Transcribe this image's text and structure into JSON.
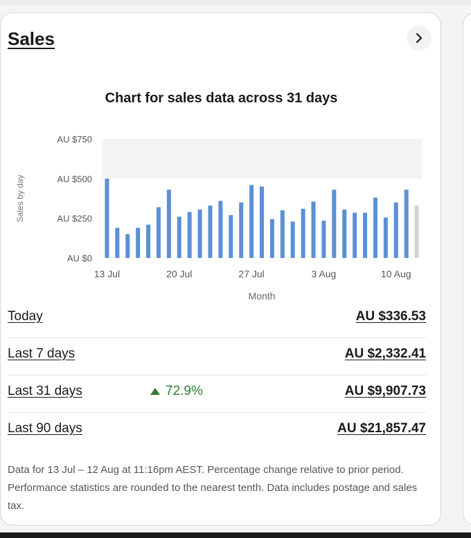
{
  "card": {
    "title": "Sales",
    "chevron_icon": "chevron-right-icon"
  },
  "chart_data": {
    "type": "bar",
    "title": "Chart for sales data across 31 days",
    "xlabel": "Month",
    "ylabel": "Sales by day",
    "yticks": [
      "AU $0",
      "AU $250",
      "AU $500",
      "AU $750"
    ],
    "ylim": [
      0,
      750
    ],
    "xticks": [
      "13 Jul",
      "20 Jul",
      "27 Jul",
      "3 Aug",
      "10 Aug"
    ],
    "categories": [
      "13 Jul",
      "14 Jul",
      "15 Jul",
      "16 Jul",
      "17 Jul",
      "18 Jul",
      "19 Jul",
      "20 Jul",
      "21 Jul",
      "22 Jul",
      "23 Jul",
      "24 Jul",
      "25 Jul",
      "26 Jul",
      "27 Jul",
      "28 Jul",
      "29 Jul",
      "30 Jul",
      "31 Jul",
      "1 Aug",
      "2 Aug",
      "3 Aug",
      "4 Aug",
      "5 Aug",
      "6 Aug",
      "7 Aug",
      "8 Aug",
      "9 Aug",
      "10 Aug",
      "11 Aug",
      "12 Aug"
    ],
    "values": [
      500,
      190,
      150,
      190,
      210,
      320,
      430,
      260,
      290,
      305,
      330,
      360,
      270,
      350,
      460,
      450,
      245,
      300,
      230,
      310,
      355,
      235,
      430,
      305,
      285,
      285,
      380,
      255,
      350,
      430,
      330
    ],
    "bar_color": "#5b8fd6",
    "partial_bar_color": "#d3d3d3",
    "shaded_band": [
      500,
      750
    ],
    "shaded_band_color": "#f3f3f3",
    "grid": false,
    "legend": "none"
  },
  "stats": [
    {
      "label": "Today",
      "value": "AU $336.53",
      "change": ""
    },
    {
      "label": "Last 7 days",
      "value": "AU $2,332.41",
      "change": ""
    },
    {
      "label": "Last 31 days",
      "value": "AU $9,907.73",
      "change": "72.9%"
    },
    {
      "label": "Last 90 days",
      "value": "AU $21,857.47",
      "change": ""
    }
  ],
  "colors": {
    "positive": "#2e7d32",
    "text": "#191919",
    "muted": "#555555"
  },
  "footnote": "Data for 13 Jul – 12 Aug at 11:16pm AEST. Percentage change relative to prior period. Performance statistics are rounded to the nearest tenth. Data includes postage and sales tax."
}
